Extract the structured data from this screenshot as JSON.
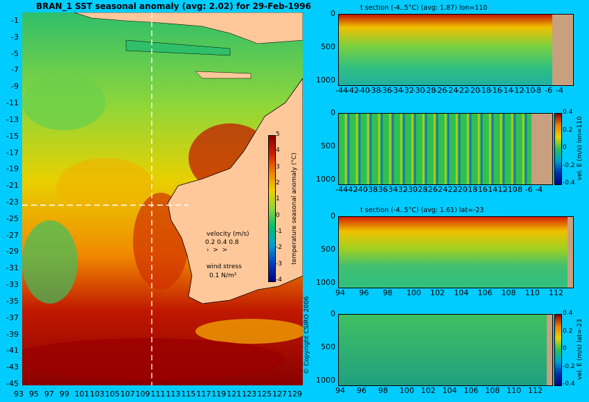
{
  "main_map": {
    "title": "BRAN_1 SST seasonal anomaly (avg: 2.02) for 29-Feb-1996",
    "lat_labels": [
      "-1",
      "-3",
      "-5",
      "-7",
      "-9",
      "-11",
      "-13",
      "-15",
      "-17",
      "-19",
      "-21",
      "-23",
      "-25",
      "-27",
      "-29",
      "-31",
      "-33",
      "-35",
      "-37",
      "-39",
      "-41",
      "-43",
      "-45"
    ],
    "lon_labels": [
      "93",
      "95",
      "97",
      "99",
      "101",
      "103",
      "105",
      "107",
      "109",
      "111",
      "113",
      "115",
      "117",
      "119",
      "121",
      "123",
      "125",
      "127",
      "129"
    ],
    "colorbar": {
      "label": "temperature seasonal anomaly (°C)",
      "ticks": [
        "5",
        "4",
        "3",
        "2",
        "1",
        "0",
        "-1",
        "-2",
        "-3",
        "-4"
      ]
    },
    "legend": {
      "velocity_label": "velocity (m/s)",
      "velocity_values": "0.2 0.4 0.8",
      "wind_label": "wind stress",
      "wind_value": "0.1 N/m²"
    },
    "copyright": "© Copyright CSIRO 2006",
    "section_lines": {
      "lon": 110,
      "lat": -23
    }
  },
  "panels": [
    {
      "id": "t-section-lon",
      "title": "t section (-4..5°C) (avg: 1.87) lon=110",
      "y_ticks": [
        "0",
        "500",
        "1000"
      ],
      "x_ticks": [
        "-44",
        "-42",
        "-40",
        "-38",
        "-36",
        "-34",
        "-32",
        "-30",
        "-28",
        "-26",
        "-24",
        "-22",
        "-20",
        "-18",
        "-16",
        "-14",
        "-12",
        "-10",
        "-8",
        "-6",
        "-4"
      ],
      "colorbar": null
    },
    {
      "id": "vel-section-lon",
      "title": "",
      "y_ticks": [
        "0",
        "500",
        "1000"
      ],
      "x_ticks": [
        "-44",
        "-42",
        "-40",
        "-38",
        "-36",
        "-34",
        "-32",
        "-30",
        "-28",
        "-26",
        "-24",
        "-22",
        "-20",
        "-18",
        "-16",
        "-14",
        "-12",
        "-10",
        "-8",
        "-6",
        "-4"
      ],
      "colorbar": {
        "label": "vel. E (m/s) lon=110",
        "ticks": [
          "0.4",
          "0.2",
          "0",
          "-0.2",
          "-0.4"
        ]
      }
    },
    {
      "id": "t-section-lat",
      "title": "t section (-4..5°C) (avg: 1.61) lat=-23",
      "y_ticks": [
        "0",
        "500",
        "1000"
      ],
      "x_ticks": [
        "94",
        "96",
        "98",
        "100",
        "102",
        "104",
        "106",
        "108",
        "110",
        "112"
      ],
      "colorbar": null
    },
    {
      "id": "vel-section-lat",
      "title": "",
      "y_ticks": [
        "0",
        "500",
        "1000"
      ],
      "x_ticks": [
        "94",
        "96",
        "98",
        "100",
        "102",
        "104",
        "106",
        "108",
        "110",
        "112"
      ],
      "colorbar": {
        "label": "vel. E (m/s) lat=-23",
        "ticks": [
          "0.4",
          "0.2",
          "0",
          "-0.2",
          "-0.4"
        ]
      }
    }
  ]
}
